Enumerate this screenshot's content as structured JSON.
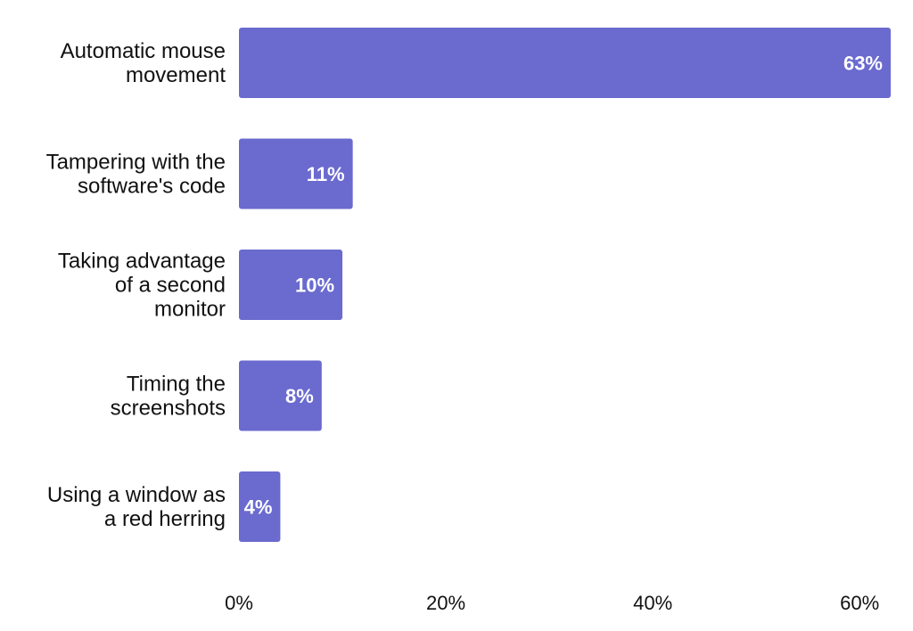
{
  "chart_data": {
    "type": "bar",
    "orientation": "horizontal",
    "title": "",
    "xlabel": "",
    "ylabel": "",
    "categories": [
      "Automatic mouse movement",
      "Tampering with the software's code",
      "Taking advantage of a second monitor",
      "Timing the screenshots",
      "Using a window as a red herring"
    ],
    "category_lines": [
      [
        "Automatic mouse",
        "movement"
      ],
      [
        "Tampering with the",
        "software's code"
      ],
      [
        "Taking advantage",
        "of a second",
        "monitor"
      ],
      [
        "Timing the",
        "screenshots"
      ],
      [
        "Using a window as",
        "a red herring"
      ]
    ],
    "values": [
      63,
      11,
      10,
      8,
      4
    ],
    "value_labels": [
      "63%",
      "11%",
      "10%",
      "8%",
      "4%"
    ],
    "xlim": [
      0,
      63
    ],
    "x_ticks": [
      0,
      20,
      40,
      60
    ],
    "x_tick_labels": [
      "0%",
      "20%",
      "40%",
      "60%"
    ],
    "grid": false,
    "legend": "none",
    "bar_color": "#6A6ACF",
    "value_label_color": "#FFFFFF",
    "text_color": "#111111"
  }
}
